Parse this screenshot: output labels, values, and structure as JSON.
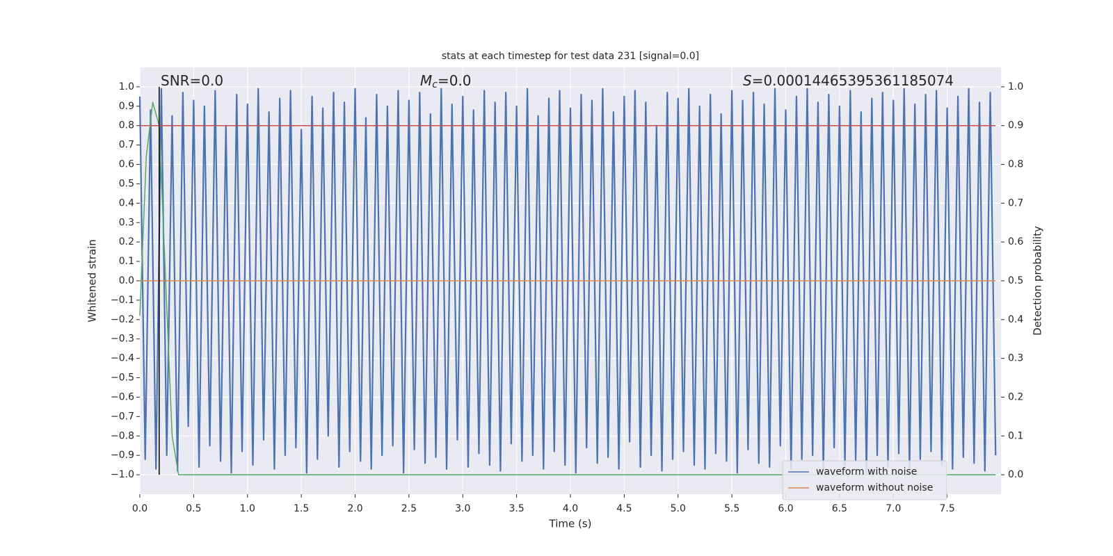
{
  "chart_data": {
    "type": "line",
    "title": "stats at each timestep for test data 231 [signal=0.0]",
    "x_label": "Time (s)",
    "y_label": "Whitened strain",
    "y2_label": "Detection probability",
    "annotations": [
      [
        "SNR=0.0"
      ],
      [
        "M",
        "c",
        "=0.0"
      ],
      [
        "S",
        "=0.00014465395361185074"
      ]
    ],
    "xlim": [
      0,
      8
    ],
    "xticks": [
      {
        "value": 0,
        "label": "0.0"
      },
      0.5,
      {
        "value": 1,
        "label": "1.0"
      },
      1.5,
      {
        "value": 2,
        "label": "2.0"
      },
      2.5,
      {
        "value": 3,
        "label": "3.0"
      },
      3.5,
      {
        "value": 4,
        "label": "4.0"
      },
      4.5,
      {
        "value": 5,
        "label": "5.0"
      },
      5.5,
      {
        "value": 6,
        "label": "6.0"
      },
      6.5,
      {
        "value": 7,
        "label": "7.0"
      },
      7.5
    ],
    "ylim": [
      -1.1,
      1.1
    ],
    "yticks": [
      {
        "value": -1,
        "label": "−1.0"
      },
      {
        "value": -0.9,
        "label": "−0.9"
      },
      {
        "value": -0.8,
        "label": "−0.8"
      },
      {
        "value": -0.7,
        "label": "−0.7"
      },
      {
        "value": -0.6,
        "label": "−0.6"
      },
      {
        "value": -0.5,
        "label": "−0.5"
      },
      {
        "value": -0.4,
        "label": "−0.4"
      },
      {
        "value": -0.3,
        "label": "−0.3"
      },
      {
        "value": -0.2,
        "label": "−0.2"
      },
      {
        "value": -0.1,
        "label": "−0.1"
      },
      {
        "value": 0,
        "label": "0.0"
      },
      0.1,
      0.2,
      0.3,
      0.4,
      0.5,
      0.6,
      0.7,
      0.8,
      0.9,
      {
        "value": 1,
        "label": "1.0"
      }
    ],
    "y2lim": [
      -0.05,
      1.05
    ],
    "y2ticks": [
      {
        "value": 0,
        "label": "0.0"
      },
      0.1,
      0.2,
      0.3,
      0.4,
      0.5,
      0.6,
      0.7,
      0.8,
      0.9,
      {
        "value": 1,
        "label": "1.0"
      }
    ],
    "grid": true,
    "grid_axis": "y2",
    "legend": "lower right",
    "series": [
      {
        "name": "waveform with noise",
        "color": "#4c72b0",
        "x": [
          0,
          0.05,
          0.1,
          0.15,
          0.2,
          0.25,
          0.3,
          0.35,
          0.4,
          0.45,
          0.5,
          0.55,
          0.6,
          0.65,
          0.7,
          0.75,
          0.8,
          0.85,
          0.9,
          0.95,
          1,
          1.05,
          1.1,
          1.15,
          1.2,
          1.25,
          1.3,
          1.35,
          1.4,
          1.45,
          1.5,
          1.55,
          1.6,
          1.65,
          1.7,
          1.75,
          1.8,
          1.85,
          1.9,
          1.95,
          2,
          2.05,
          2.1,
          2.15,
          2.2,
          2.25,
          2.3,
          2.35,
          2.4,
          2.45,
          2.5,
          2.55,
          2.6,
          2.65,
          2.7,
          2.75,
          2.8,
          2.85,
          2.9,
          2.95,
          3,
          3.05,
          3.1,
          3.15,
          3.2,
          3.25,
          3.3,
          3.35,
          3.4,
          3.45,
          3.5,
          3.55,
          3.6,
          3.65,
          3.7,
          3.75,
          3.8,
          3.85,
          3.9,
          3.95,
          4,
          4.05,
          4.1,
          4.15,
          4.2,
          4.25,
          4.3,
          4.35,
          4.4,
          4.45,
          4.5,
          4.55,
          4.6,
          4.65,
          4.7,
          4.75,
          4.8,
          4.85,
          4.9,
          4.95,
          5,
          5.05,
          5.1,
          5.15,
          5.2,
          5.25,
          5.3,
          5.35,
          5.4,
          5.45,
          5.5,
          5.55,
          5.6,
          5.65,
          5.7,
          5.75,
          5.8,
          5.85,
          5.9,
          5.95,
          6,
          6.05,
          6.1,
          6.15,
          6.2,
          6.25,
          6.3,
          6.35,
          6.4,
          6.45,
          6.5,
          6.55,
          6.6,
          6.65,
          6.7,
          6.75,
          6.8,
          6.85,
          6.9,
          6.95,
          7,
          7.05,
          7.1,
          7.15,
          7.2,
          7.25,
          7.3,
          7.35,
          7.4,
          7.45,
          7.5,
          7.55,
          7.6,
          7.65,
          7.7,
          7.75,
          7.8,
          7.85,
          7.9,
          7.95
        ],
        "values": [
          0.95,
          -0.92,
          0.88,
          -0.97,
          0.99,
          -0.9,
          0.85,
          -0.98,
          0.97,
          -0.75,
          0.93,
          -0.96,
          0.9,
          -0.85,
          0.98,
          -0.93,
          0.8,
          -0.99,
          0.96,
          -0.88,
          0.91,
          -0.95,
          0.99,
          -0.82,
          0.87,
          -0.97,
          0.94,
          -0.9,
          0.98,
          -0.86,
          0.78,
          -0.99,
          0.95,
          -0.92,
          0.89,
          -0.8,
          0.97,
          -0.96,
          0.92,
          -0.88,
          0.99,
          -0.93,
          0.84,
          -0.97,
          0.96,
          -0.9,
          0.9,
          -0.85,
          0.98,
          -0.99,
          0.93,
          -0.87,
          0.97,
          -0.94,
          0.86,
          -0.91,
          0.99,
          -0.97,
          0.91,
          -0.82,
          0.95,
          -0.96,
          0.88,
          -0.89,
          0.98,
          -0.95,
          0.92,
          -0.98,
          0.97,
          -0.84,
          0.9,
          -0.93,
          0.99,
          -0.9,
          0.85,
          -0.97,
          0.94,
          -0.88,
          0.98,
          -0.95,
          0.89,
          -0.99,
          0.96,
          -0.86,
          0.93,
          -0.94,
          0.99,
          -0.91,
          0.87,
          -0.97,
          0.95,
          -0.83,
          0.98,
          -0.96,
          0.92,
          -0.9,
          0.8,
          -0.98,
          0.97,
          -0.92,
          0.94,
          -0.88,
          0.99,
          -0.95,
          0.9,
          -0.97,
          0.96,
          -0.89,
          0.86,
          -0.93,
          0.98,
          -0.99,
          0.93,
          -0.87,
          0.97,
          -0.94,
          0.91,
          -0.96,
          0.99,
          -0.85,
          0.88,
          -0.97,
          0.95,
          -0.92,
          0.99,
          -0.9,
          0.92,
          -0.98,
          0.96,
          -0.86,
          0.9,
          -0.95,
          0.98,
          -0.93,
          0.87,
          -0.99,
          0.94,
          -0.9,
          0.97,
          -0.96,
          0.93,
          -0.89,
          0.99,
          -0.97,
          0.91,
          -0.92,
          0.96,
          -0.88,
          0.98,
          -0.95,
          0.89,
          -0.97,
          0.95,
          -0.91,
          0.99,
          -0.94,
          0.92,
          -0.98,
          0.97,
          -0.9
        ]
      },
      {
        "name": "waveform without noise",
        "color": "#dd8452",
        "x": [
          0,
          7.95
        ],
        "values": [
          0,
          0
        ]
      },
      {
        "color": "#c44e52",
        "axis": "y2",
        "x": [
          0,
          7.95
        ],
        "values": [
          0.9,
          0.9
        ]
      },
      {
        "color": "#55a868",
        "axis": "y2",
        "x": [
          0,
          0.06,
          0.12,
          0.18,
          0.24,
          0.3,
          0.36,
          7.95
        ],
        "values": [
          0.41,
          0.82,
          0.96,
          0.9,
          0.5,
          0.1,
          0.0,
          0.0
        ]
      },
      {
        "color": "#000000",
        "x": [
          0.18,
          0.18
        ],
        "values": [
          -1,
          1
        ]
      }
    ]
  }
}
